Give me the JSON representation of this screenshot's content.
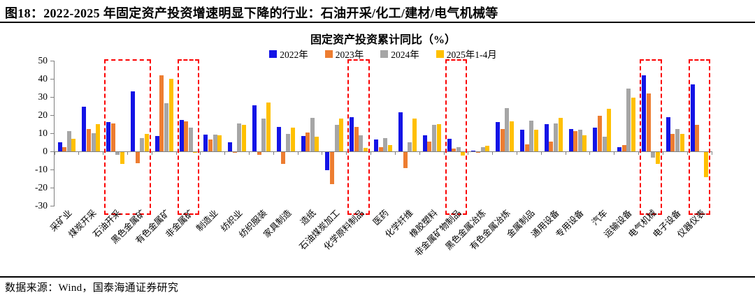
{
  "header": {
    "title": "图18：2022-2025 年固定资产投资增速明显下降的行业：石油开采/化工/建材/电气机械等"
  },
  "footer": {
    "source": "数据来源：Wind，国泰海通证券研究"
  },
  "chart_data": {
    "type": "bar",
    "title": "固定资产投资累计同比（%）",
    "xlabel": "",
    "ylabel": "",
    "ylim": [
      -30,
      50
    ],
    "yticks": [
      50,
      40,
      30,
      20,
      10,
      0,
      -10,
      -20,
      -30
    ],
    "grid": false,
    "legend_position": "top",
    "categories": [
      "采矿业",
      "煤炭开采",
      "石油开采",
      "黑色金属矿",
      "有色金属矿",
      "非金属矿",
      "制造业",
      "纺织业",
      "纺织服装",
      "家具制造",
      "造纸",
      "石油煤炭加工",
      "化学原料制品",
      "医药",
      "化学纤维",
      "橡胶塑料",
      "非金属矿物制品",
      "黑色金属冶炼",
      "有色金属冶炼",
      "金属制品",
      "通用设备",
      "专用设备",
      "汽车",
      "运输设备",
      "电气机械",
      "电子设备",
      "仪器仪表"
    ],
    "series": [
      {
        "name": "2022年",
        "color": "#1414E6",
        "values": [
          5,
          24.5,
          16,
          33,
          8.5,
          17.5,
          9.1,
          5,
          25.5,
          13.5,
          8.5,
          -10,
          19,
          6.5,
          21.5,
          9,
          7,
          0.3,
          16,
          12,
          15,
          12.5,
          13,
          2.5,
          42,
          19,
          37
        ]
      },
      {
        "name": "2023年",
        "color": "#ED7D31",
        "values": [
          2.5,
          12.5,
          15.5,
          -6,
          42,
          16.5,
          6.5,
          -0.5,
          -1.5,
          -6.5,
          10.5,
          -17.5,
          13.5,
          2.5,
          -9,
          5.5,
          1.5,
          -0.5,
          12.5,
          4,
          5.5,
          11,
          19.5,
          3.5,
          32,
          9.5,
          14.5
        ]
      },
      {
        "name": "2024年",
        "color": "#A6A6A6",
        "values": [
          11,
          10,
          -1.5,
          7.5,
          26.5,
          13,
          9.2,
          15.5,
          18,
          9.5,
          18.5,
          14.5,
          9,
          7.5,
          5,
          14.5,
          2.5,
          2.5,
          24,
          17,
          15.5,
          12,
          8,
          34.5,
          -3,
          12.5,
          0
        ]
      },
      {
        "name": "2025年1-4月",
        "color": "#FFC000",
        "values": [
          7,
          15,
          -6.5,
          9.5,
          40,
          -0.5,
          8.8,
          14.5,
          27,
          13,
          8,
          18,
          2,
          3.5,
          18,
          15,
          -2,
          3,
          16.5,
          12,
          18.5,
          9,
          23.5,
          29.5,
          -6.5,
          9.5,
          -14
        ]
      }
    ],
    "highlight_boxes": [
      {
        "from": 2,
        "to": 3
      },
      {
        "from": 5,
        "to": 5
      },
      {
        "from": 12,
        "to": 12
      },
      {
        "from": 16,
        "to": 16
      },
      {
        "from": 24,
        "to": 24
      },
      {
        "from": 26,
        "to": 26
      }
    ],
    "highlight_color": "#FB0000"
  }
}
